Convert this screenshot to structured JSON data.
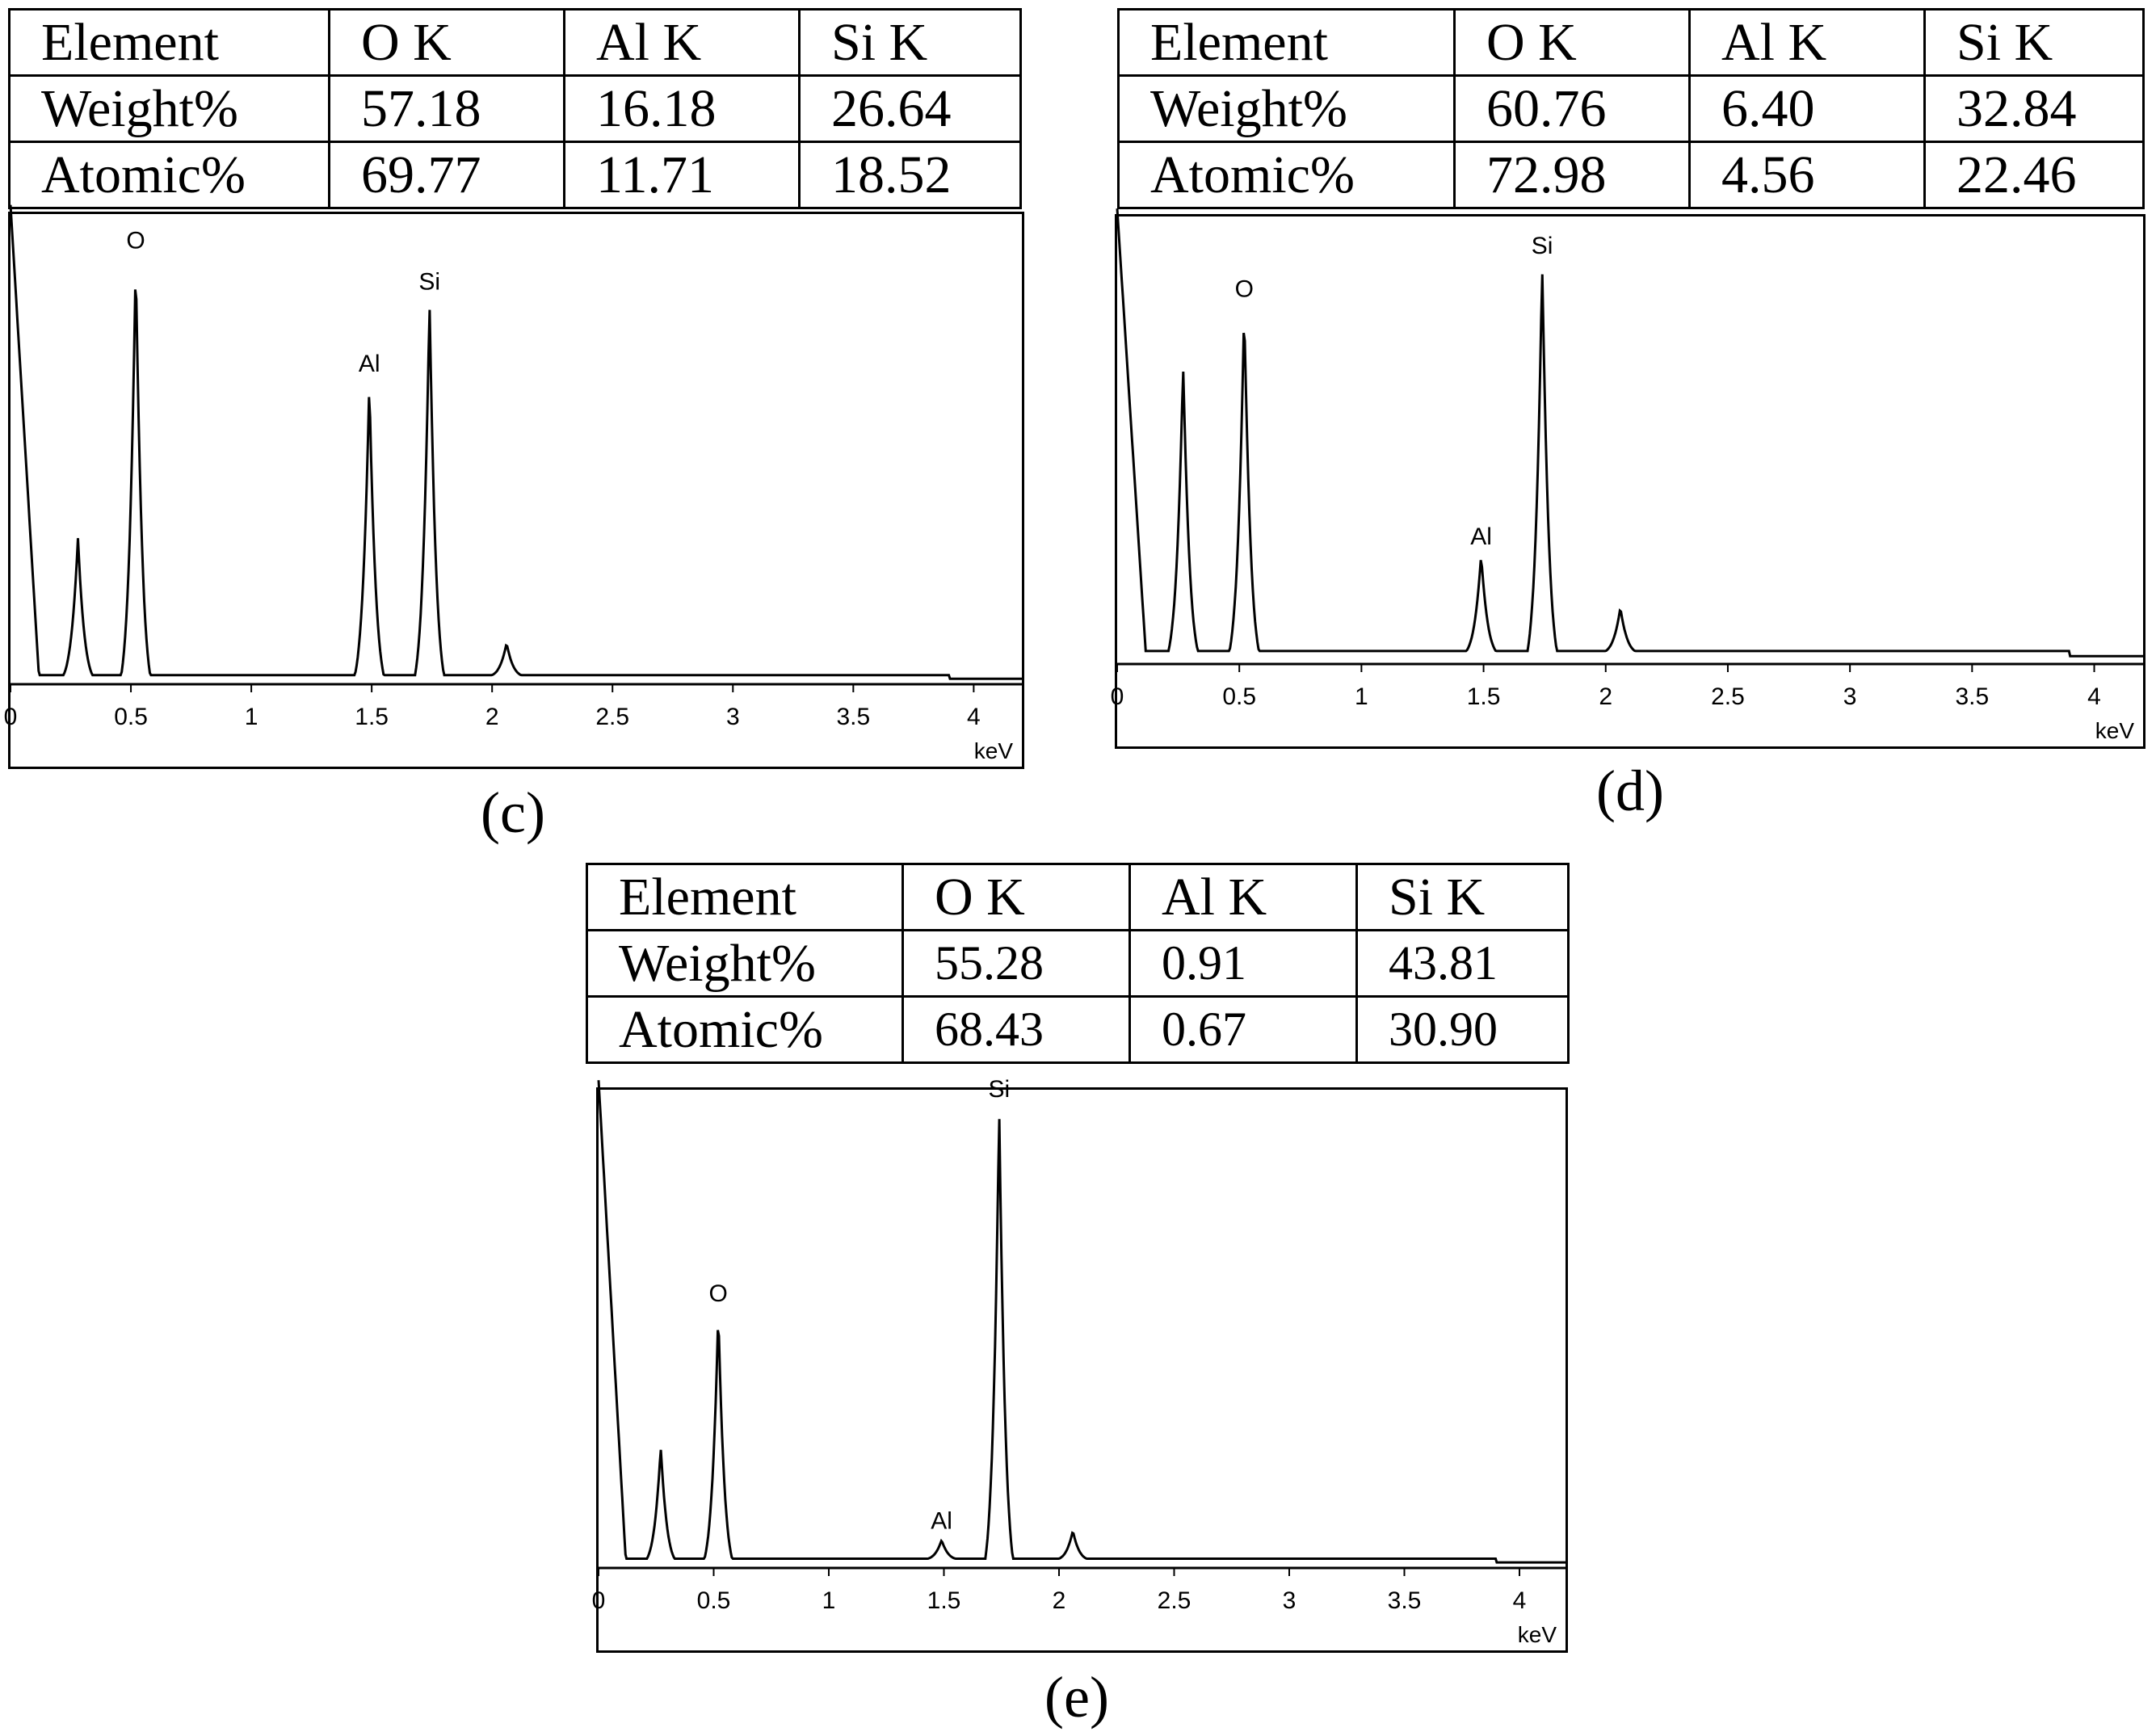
{
  "panels": [
    {
      "caption": "(c)",
      "table": {
        "header": [
          "Element",
          "O K",
          "Al K",
          "Si K"
        ],
        "rows": [
          {
            "label": "Weight%",
            "values": [
              "57.18",
              "16.18",
              "26.64"
            ]
          },
          {
            "label": "Atomic%",
            "values": [
              "69.77",
              "11.71",
              "18.52"
            ]
          }
        ]
      }
    },
    {
      "caption": "(d)",
      "table": {
        "header": [
          "Element",
          "O K",
          "Al K",
          "Si K"
        ],
        "rows": [
          {
            "label": "Weight%",
            "values": [
              "60.76",
              "6.40",
              "32.84"
            ]
          },
          {
            "label": "Atomic%",
            "values": [
              "72.98",
              "4.56",
              "22.46"
            ]
          }
        ]
      }
    },
    {
      "caption": "(e)",
      "table": {
        "header": [
          "Element",
          "O K",
          "Al K",
          "Si K"
        ],
        "rows": [
          {
            "label": "Weight%",
            "values": [
              "55.28",
              "0.91",
              "43.81"
            ]
          },
          {
            "label": "Atomic%",
            "values": [
              "68.43",
              "0.67",
              "30.90"
            ]
          }
        ]
      }
    }
  ],
  "chart_data": [
    {
      "type": "line",
      "xlabel": "keV",
      "ylabel": "",
      "xlim": [
        0,
        4.2
      ],
      "ylim": [
        0,
        1
      ],
      "x_ticks": [
        "0",
        "0.5",
        "1",
        "1.5",
        "2",
        "2.5",
        "3",
        "3.5",
        "4"
      ],
      "baseline": 0.02,
      "peaks": [
        {
          "label": "",
          "x": 0.28,
          "height": 0.3
        },
        {
          "label": "O",
          "x": 0.52,
          "height": 0.91
        },
        {
          "label": "Al",
          "x": 1.49,
          "height": 0.64
        },
        {
          "label": "Si",
          "x": 1.74,
          "height": 0.82
        },
        {
          "label": "",
          "x": 2.06,
          "height": 0.07
        }
      ],
      "color": "#000000"
    },
    {
      "type": "line",
      "xlabel": "keV",
      "ylabel": "",
      "xlim": [
        0,
        4.2
      ],
      "ylim": [
        0,
        1
      ],
      "x_ticks": [
        "0",
        "0.5",
        "1",
        "1.5",
        "2",
        "2.5",
        "3",
        "3.5",
        "4"
      ],
      "baseline": 0.03,
      "peaks": [
        {
          "label": "",
          "x": 0.27,
          "height": 0.66
        },
        {
          "label": "O",
          "x": 0.52,
          "height": 0.79
        },
        {
          "label": "Al",
          "x": 1.49,
          "height": 0.22
        },
        {
          "label": "Si",
          "x": 1.74,
          "height": 0.89
        },
        {
          "label": "",
          "x": 2.06,
          "height": 0.1
        }
      ],
      "color": "#000000"
    },
    {
      "type": "line",
      "xlabel": "keV",
      "ylabel": "",
      "xlim": [
        0,
        4.2
      ],
      "ylim": [
        0,
        1
      ],
      "x_ticks": [
        "0",
        "0.5",
        "1",
        "1.5",
        "2",
        "2.5",
        "3",
        "3.5",
        "4"
      ],
      "baseline": 0.02,
      "peaks": [
        {
          "label": "",
          "x": 0.27,
          "height": 0.24
        },
        {
          "label": "O",
          "x": 0.52,
          "height": 0.53
        },
        {
          "label": "Al",
          "x": 1.49,
          "height": 0.04
        },
        {
          "label": "Si",
          "x": 1.74,
          "height": 0.97
        },
        {
          "label": "",
          "x": 2.06,
          "height": 0.06
        }
      ],
      "color": "#000000"
    }
  ]
}
